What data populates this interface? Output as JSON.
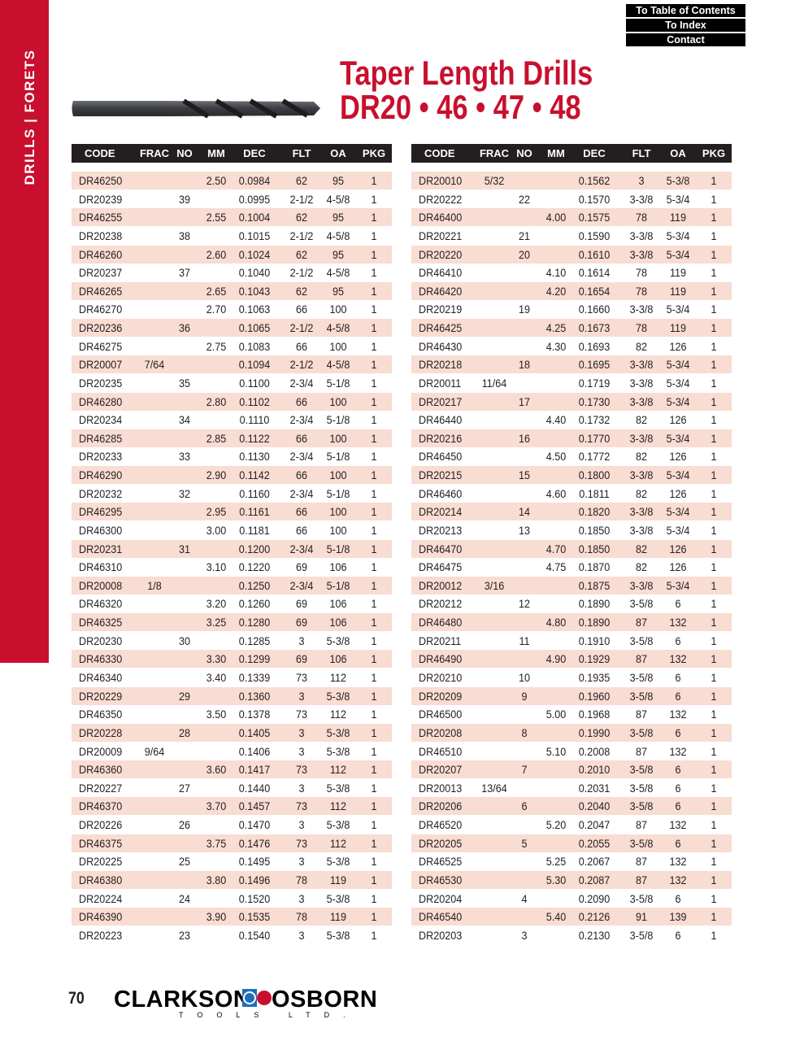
{
  "sidebar": {
    "label": "DRILLS | FORETS",
    "color": "#c8102e"
  },
  "nav": {
    "toc": "To Table of Contents",
    "index": "To Index",
    "contact": "Contact"
  },
  "header": {
    "title_line1": "Taper Length Drills",
    "title_line2": "DR20 • 46 • 47 • 48",
    "color": "#c8102e"
  },
  "columns": [
    "CODE",
    "FRAC",
    "NO",
    "MM",
    "DEC",
    "FLT",
    "OA",
    "PKG"
  ],
  "tables": [
    {
      "rows": [
        [
          "DR46250",
          "",
          "",
          "2.50",
          "0.0984",
          "62",
          "95",
          "1"
        ],
        [
          "DR20239",
          "",
          "39",
          "",
          "0.0995",
          "2-1/2",
          "4-5/8",
          "1"
        ],
        [
          "DR46255",
          "",
          "",
          "2.55",
          "0.1004",
          "62",
          "95",
          "1"
        ],
        [
          "DR20238",
          "",
          "38",
          "",
          "0.1015",
          "2-1/2",
          "4-5/8",
          "1"
        ],
        [
          "DR46260",
          "",
          "",
          "2.60",
          "0.1024",
          "62",
          "95",
          "1"
        ],
        [
          "DR20237",
          "",
          "37",
          "",
          "0.1040",
          "2-1/2",
          "4-5/8",
          "1"
        ],
        [
          "DR46265",
          "",
          "",
          "2.65",
          "0.1043",
          "62",
          "95",
          "1"
        ],
        [
          "DR46270",
          "",
          "",
          "2.70",
          "0.1063",
          "66",
          "100",
          "1"
        ],
        [
          "DR20236",
          "",
          "36",
          "",
          "0.1065",
          "2-1/2",
          "4-5/8",
          "1"
        ],
        [
          "DR46275",
          "",
          "",
          "2.75",
          "0.1083",
          "66",
          "100",
          "1"
        ],
        [
          "DR20007",
          "7/64",
          "",
          "",
          "0.1094",
          "2-1/2",
          "4-5/8",
          "1"
        ],
        [
          "DR20235",
          "",
          "35",
          "",
          "0.1100",
          "2-3/4",
          "5-1/8",
          "1"
        ],
        [
          "DR46280",
          "",
          "",
          "2.80",
          "0.1102",
          "66",
          "100",
          "1"
        ],
        [
          "DR20234",
          "",
          "34",
          "",
          "0.1110",
          "2-3/4",
          "5-1/8",
          "1"
        ],
        [
          "DR46285",
          "",
          "",
          "2.85",
          "0.1122",
          "66",
          "100",
          "1"
        ],
        [
          "DR20233",
          "",
          "33",
          "",
          "0.1130",
          "2-3/4",
          "5-1/8",
          "1"
        ],
        [
          "DR46290",
          "",
          "",
          "2.90",
          "0.1142",
          "66",
          "100",
          "1"
        ],
        [
          "DR20232",
          "",
          "32",
          "",
          "0.1160",
          "2-3/4",
          "5-1/8",
          "1"
        ],
        [
          "DR46295",
          "",
          "",
          "2.95",
          "0.1161",
          "66",
          "100",
          "1"
        ],
        [
          "DR46300",
          "",
          "",
          "3.00",
          "0.1181",
          "66",
          "100",
          "1"
        ],
        [
          "DR20231",
          "",
          "31",
          "",
          "0.1200",
          "2-3/4",
          "5-1/8",
          "1"
        ],
        [
          "DR46310",
          "",
          "",
          "3.10",
          "0.1220",
          "69",
          "106",
          "1"
        ],
        [
          "DR20008",
          "1/8",
          "",
          "",
          "0.1250",
          "2-3/4",
          "5-1/8",
          "1"
        ],
        [
          "DR46320",
          "",
          "",
          "3.20",
          "0.1260",
          "69",
          "106",
          "1"
        ],
        [
          "DR46325",
          "",
          "",
          "3.25",
          "0.1280",
          "69",
          "106",
          "1"
        ],
        [
          "DR20230",
          "",
          "30",
          "",
          "0.1285",
          "3",
          "5-3/8",
          "1"
        ],
        [
          "DR46330",
          "",
          "",
          "3.30",
          "0.1299",
          "69",
          "106",
          "1"
        ],
        [
          "DR46340",
          "",
          "",
          "3.40",
          "0.1339",
          "73",
          "112",
          "1"
        ],
        [
          "DR20229",
          "",
          "29",
          "",
          "0.1360",
          "3",
          "5-3/8",
          "1"
        ],
        [
          "DR46350",
          "",
          "",
          "3.50",
          "0.1378",
          "73",
          "112",
          "1"
        ],
        [
          "DR20228",
          "",
          "28",
          "",
          "0.1405",
          "3",
          "5-3/8",
          "1"
        ],
        [
          "DR20009",
          "9/64",
          "",
          "",
          "0.1406",
          "3",
          "5-3/8",
          "1"
        ],
        [
          "DR46360",
          "",
          "",
          "3.60",
          "0.1417",
          "73",
          "112",
          "1"
        ],
        [
          "DR20227",
          "",
          "27",
          "",
          "0.1440",
          "3",
          "5-3/8",
          "1"
        ],
        [
          "DR46370",
          "",
          "",
          "3.70",
          "0.1457",
          "73",
          "112",
          "1"
        ],
        [
          "DR20226",
          "",
          "26",
          "",
          "0.1470",
          "3",
          "5-3/8",
          "1"
        ],
        [
          "DR46375",
          "",
          "",
          "3.75",
          "0.1476",
          "73",
          "112",
          "1"
        ],
        [
          "DR20225",
          "",
          "25",
          "",
          "0.1495",
          "3",
          "5-3/8",
          "1"
        ],
        [
          "DR46380",
          "",
          "",
          "3.80",
          "0.1496",
          "78",
          "119",
          "1"
        ],
        [
          "DR20224",
          "",
          "24",
          "",
          "0.1520",
          "3",
          "5-3/8",
          "1"
        ],
        [
          "DR46390",
          "",
          "",
          "3.90",
          "0.1535",
          "78",
          "119",
          "1"
        ],
        [
          "DR20223",
          "",
          "23",
          "",
          "0.1540",
          "3",
          "5-3/8",
          "1"
        ]
      ]
    },
    {
      "rows": [
        [
          "DR20010",
          "5/32",
          "",
          "",
          "0.1562",
          "3",
          "5-3/8",
          "1"
        ],
        [
          "DR20222",
          "",
          "22",
          "",
          "0.1570",
          "3-3/8",
          "5-3/4",
          "1"
        ],
        [
          "DR46400",
          "",
          "",
          "4.00",
          "0.1575",
          "78",
          "119",
          "1"
        ],
        [
          "DR20221",
          "",
          "21",
          "",
          "0.1590",
          "3-3/8",
          "5-3/4",
          "1"
        ],
        [
          "DR20220",
          "",
          "20",
          "",
          "0.1610",
          "3-3/8",
          "5-3/4",
          "1"
        ],
        [
          "DR46410",
          "",
          "",
          "4.10",
          "0.1614",
          "78",
          "119",
          "1"
        ],
        [
          "DR46420",
          "",
          "",
          "4.20",
          "0.1654",
          "78",
          "119",
          "1"
        ],
        [
          "DR20219",
          "",
          "19",
          "",
          "0.1660",
          "3-3/8",
          "5-3/4",
          "1"
        ],
        [
          "DR46425",
          "",
          "",
          "4.25",
          "0.1673",
          "78",
          "119",
          "1"
        ],
        [
          "DR46430",
          "",
          "",
          "4.30",
          "0.1693",
          "82",
          "126",
          "1"
        ],
        [
          "DR20218",
          "",
          "18",
          "",
          "0.1695",
          "3-3/8",
          "5-3/4",
          "1"
        ],
        [
          "DR20011",
          "11/64",
          "",
          "",
          "0.1719",
          "3-3/8",
          "5-3/4",
          "1"
        ],
        [
          "DR20217",
          "",
          "17",
          "",
          "0.1730",
          "3-3/8",
          "5-3/4",
          "1"
        ],
        [
          "DR46440",
          "",
          "",
          "4.40",
          "0.1732",
          "82",
          "126",
          "1"
        ],
        [
          "DR20216",
          "",
          "16",
          "",
          "0.1770",
          "3-3/8",
          "5-3/4",
          "1"
        ],
        [
          "DR46450",
          "",
          "",
          "4.50",
          "0.1772",
          "82",
          "126",
          "1"
        ],
        [
          "DR20215",
          "",
          "15",
          "",
          "0.1800",
          "3-3/8",
          "5-3/4",
          "1"
        ],
        [
          "DR46460",
          "",
          "",
          "4.60",
          "0.1811",
          "82",
          "126",
          "1"
        ],
        [
          "DR20214",
          "",
          "14",
          "",
          "0.1820",
          "3-3/8",
          "5-3/4",
          "1"
        ],
        [
          "DR20213",
          "",
          "13",
          "",
          "0.1850",
          "3-3/8",
          "5-3/4",
          "1"
        ],
        [
          "DR46470",
          "",
          "",
          "4.70",
          "0.1850",
          "82",
          "126",
          "1"
        ],
        [
          "DR46475",
          "",
          "",
          "4.75",
          "0.1870",
          "82",
          "126",
          "1"
        ],
        [
          "DR20012",
          "3/16",
          "",
          "",
          "0.1875",
          "3-3/8",
          "5-3/4",
          "1"
        ],
        [
          "DR20212",
          "",
          "12",
          "",
          "0.1890",
          "3-5/8",
          "6",
          "1"
        ],
        [
          "DR46480",
          "",
          "",
          "4.80",
          "0.1890",
          "87",
          "132",
          "1"
        ],
        [
          "DR20211",
          "",
          "11",
          "",
          "0.1910",
          "3-5/8",
          "6",
          "1"
        ],
        [
          "DR46490",
          "",
          "",
          "4.90",
          "0.1929",
          "87",
          "132",
          "1"
        ],
        [
          "DR20210",
          "",
          "10",
          "",
          "0.1935",
          "3-5/8",
          "6",
          "1"
        ],
        [
          "DR20209",
          "",
          "9",
          "",
          "0.1960",
          "3-5/8",
          "6",
          "1"
        ],
        [
          "DR46500",
          "",
          "",
          "5.00",
          "0.1968",
          "87",
          "132",
          "1"
        ],
        [
          "DR20208",
          "",
          "8",
          "",
          "0.1990",
          "3-5/8",
          "6",
          "1"
        ],
        [
          "DR46510",
          "",
          "",
          "5.10",
          "0.2008",
          "87",
          "132",
          "1"
        ],
        [
          "DR20207",
          "",
          "7",
          "",
          "0.2010",
          "3-5/8",
          "6",
          "1"
        ],
        [
          "DR20013",
          "13/64",
          "",
          "",
          "0.2031",
          "3-5/8",
          "6",
          "1"
        ],
        [
          "DR20206",
          "",
          "6",
          "",
          "0.2040",
          "3-5/8",
          "6",
          "1"
        ],
        [
          "DR46520",
          "",
          "",
          "5.20",
          "0.2047",
          "87",
          "132",
          "1"
        ],
        [
          "DR20205",
          "",
          "5",
          "",
          "0.2055",
          "3-5/8",
          "6",
          "1"
        ],
        [
          "DR46525",
          "",
          "",
          "5.25",
          "0.2067",
          "87",
          "132",
          "1"
        ],
        [
          "DR46530",
          "",
          "",
          "5.30",
          "0.2087",
          "87",
          "132",
          "1"
        ],
        [
          "DR20204",
          "",
          "4",
          "",
          "0.2090",
          "3-5/8",
          "6",
          "1"
        ],
        [
          "DR46540",
          "",
          "",
          "5.40",
          "0.2126",
          "91",
          "139",
          "1"
        ],
        [
          "DR20203",
          "",
          "3",
          "",
          "0.2130",
          "3-5/8",
          "6",
          "1"
        ]
      ]
    }
  ],
  "footer": {
    "page_number": "70",
    "brand_left": "CLARKSON",
    "brand_right": "OSBORN",
    "tagline": "TOOLS LTD."
  }
}
